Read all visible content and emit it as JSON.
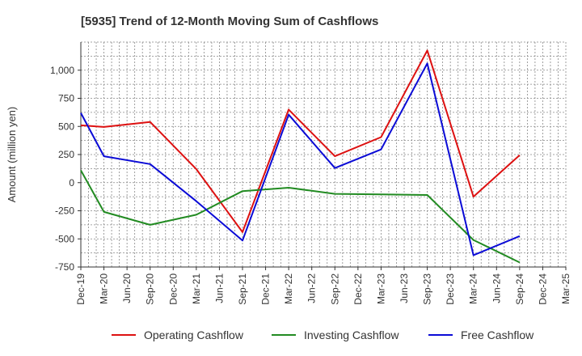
{
  "chart_data": {
    "type": "line",
    "title": "[5935]  Trend of 12-Month Moving Sum of Cashflows",
    "ylabel": "Amount (million yen)",
    "xlabel": "",
    "categories": [
      "Dec-19",
      "Mar-20",
      "Jun-20",
      "Sep-20",
      "Dec-20",
      "Mar-21",
      "Jun-21",
      "Sep-21",
      "Dec-21",
      "Mar-22",
      "Jun-22",
      "Sep-22",
      "Dec-22",
      "Mar-23",
      "Jun-23",
      "Sep-23",
      "Dec-23",
      "Mar-24",
      "Jun-24",
      "Sep-24",
      "Dec-24",
      "Mar-25"
    ],
    "ylim": [
      -750,
      1250
    ],
    "yticks": [
      -750,
      -500,
      -250,
      0,
      250,
      500,
      750,
      1000
    ],
    "ytick_labels": [
      "-750",
      "-500",
      "-250",
      "0",
      "250",
      "500",
      "750",
      "1,000"
    ],
    "grid": true,
    "legend_position": "bottom",
    "series": [
      {
        "name": "Operating Cashflow",
        "color": "#dd1111",
        "values": [
          510,
          495,
          null,
          540,
          null,
          120,
          null,
          -440,
          null,
          650,
          null,
          235,
          null,
          405,
          null,
          1175,
          null,
          -125,
          null,
          245,
          null,
          null
        ]
      },
      {
        "name": "Investing Cashflow",
        "color": "#228b22",
        "values": [
          110,
          -260,
          null,
          -375,
          null,
          -285,
          null,
          -75,
          null,
          -45,
          null,
          -100,
          null,
          -105,
          null,
          -110,
          null,
          -510,
          null,
          -710,
          null,
          null
        ]
      },
      {
        "name": "Free Cashflow",
        "color": "#0b0bd6",
        "values": [
          620,
          235,
          null,
          165,
          null,
          -165,
          null,
          -515,
          null,
          605,
          null,
          130,
          null,
          295,
          null,
          1060,
          null,
          -645,
          null,
          -475,
          null,
          null
        ]
      }
    ]
  }
}
